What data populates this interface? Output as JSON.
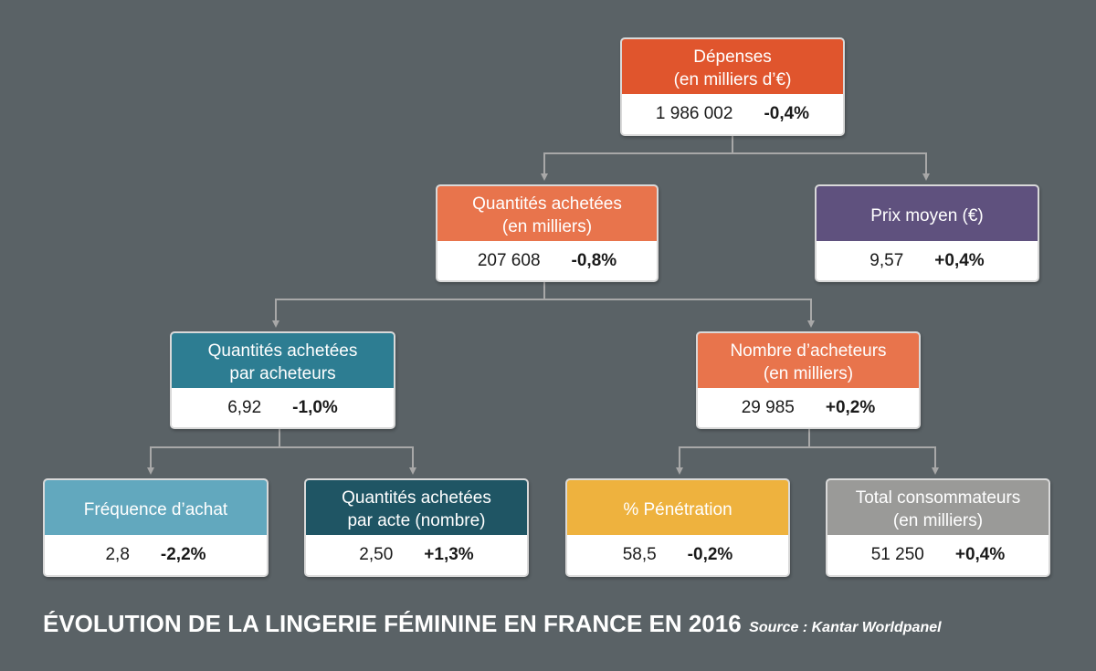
{
  "nodes": {
    "depenses": {
      "title": "Dépenses\n(en milliers d’€)",
      "value": "1 986 002",
      "change": "-0,4%",
      "color": "#e0552d"
    },
    "quantites": {
      "title": "Quantités achetées\n(en milliers)",
      "value": "207 608",
      "change": "-0,8%",
      "color": "#e8744c"
    },
    "prix": {
      "title": "Prix moyen (€)",
      "value": "9,57",
      "change": "+0,4%",
      "color": "#5f517e"
    },
    "qpa": {
      "title": "Quantités achetées\npar acheteurs",
      "value": "6,92",
      "change": "-1,0%",
      "color": "#2d7d92"
    },
    "acheteurs": {
      "title": "Nombre d’acheteurs\n(en milliers)",
      "value": "29 985",
      "change": "+0,2%",
      "color": "#e8744c"
    },
    "freq": {
      "title": "Fréquence d’achat",
      "value": "2,8",
      "change": "-2,2%",
      "color": "#62a8be"
    },
    "qacte": {
      "title": "Quantités achetées\npar acte (nombre)",
      "value": "2,50",
      "change": "+1,3%",
      "color": "#1f5564"
    },
    "pene": {
      "title": "% Pénétration",
      "value": "58,5",
      "change": "-0,2%",
      "color": "#eeb23e"
    },
    "total": {
      "title": "Total consommateurs\n(en milliers)",
      "value": "51 250",
      "change": "+0,4%",
      "color": "#9a9a98"
    }
  },
  "footer": {
    "title": "ÉVOLUTION DE LA LINGERIE FÉMININE EN FRANCE EN 2016",
    "source": "Source : Kantar Worldpanel"
  },
  "colors": {
    "background": "#5a6266",
    "connector": "#a8a8a8"
  }
}
